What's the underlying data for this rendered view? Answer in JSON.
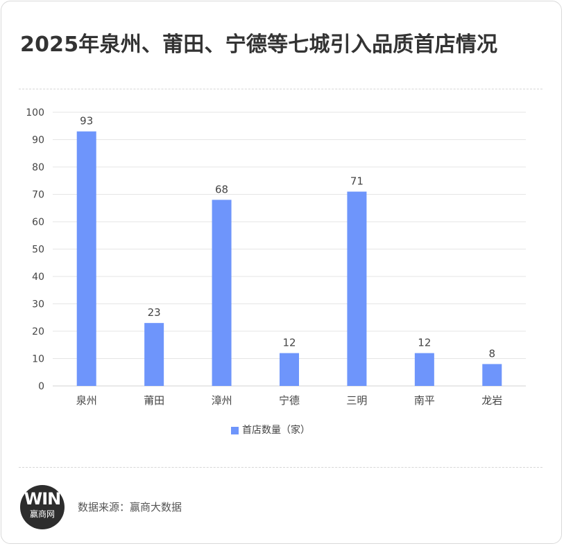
{
  "title": "2025年泉州、莆田、宁德等七城引入品质首店情况",
  "colors": {
    "bar": "#6e95fb",
    "grid": "#e5e5e5",
    "axis": "#d0d0d0",
    "text": "#444444"
  },
  "chart_data": {
    "type": "bar",
    "categories": [
      "泉州",
      "莆田",
      "漳州",
      "宁德",
      "三明",
      "南平",
      "龙岩"
    ],
    "series": [
      {
        "name": "首店数量（家）",
        "values": [
          93,
          23,
          68,
          12,
          71,
          12,
          8
        ]
      }
    ],
    "ylim": [
      0,
      100
    ],
    "yticks": [
      0,
      10,
      20,
      30,
      40,
      50,
      60,
      70,
      80,
      90,
      100
    ],
    "grid": true,
    "legend_position": "bottom",
    "data_labels": true
  },
  "logo": {
    "mark": "WIN",
    "text": "赢商网"
  },
  "source": "数据来源：赢商大数据"
}
